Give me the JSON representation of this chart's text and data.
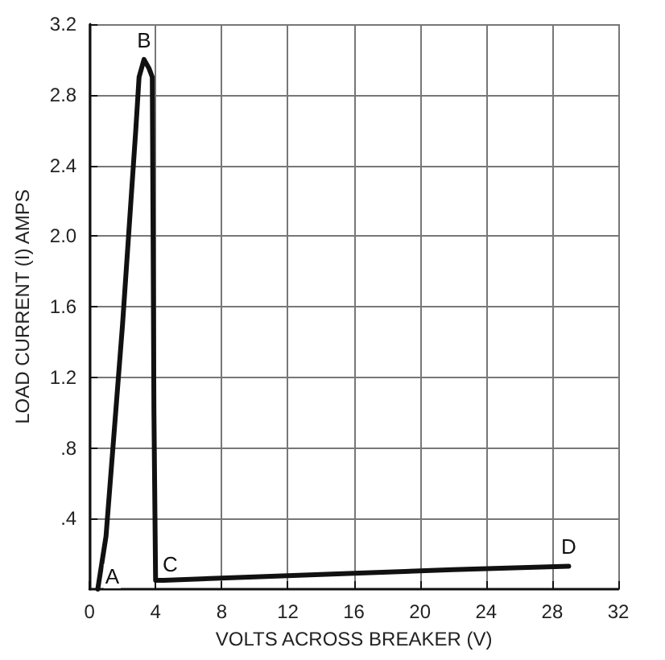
{
  "chart_data": {
    "type": "line",
    "xlabel": "VOLTS ACROSS BREAKER (V)",
    "ylabel": "LOAD CURRENT (I) AMPS",
    "x": [
      0.5,
      1.0,
      2.0,
      2.8,
      3.0,
      3.3,
      3.6,
      3.8,
      3.9,
      4.0,
      4.5,
      10,
      16,
      22,
      29
    ],
    "series": [
      {
        "color": "#111111",
        "values": [
          0,
          0.3,
          1.5,
          2.6,
          2.9,
          3.0,
          2.95,
          2.9,
          1.0,
          0.05,
          0.05,
          0.07,
          0.09,
          0.11,
          0.13
        ]
      }
    ],
    "xlim": [
      0,
      32
    ],
    "xticks": [
      0,
      4,
      8,
      12,
      16,
      20,
      24,
      28,
      32
    ],
    "ylim": [
      0,
      3.2
    ],
    "yticks": [
      {
        "value": 0.4,
        "label": ".4"
      },
      {
        "value": 0.8,
        "label": ".8"
      },
      1.2,
      1.6,
      {
        "value": 2,
        "label": "2.0"
      },
      2.4,
      2.8,
      3.2
    ],
    "grid": true,
    "marker": "none",
    "line_style": "solid",
    "annotations": [
      {
        "text": "A",
        "x": 0.5,
        "y": 0
      },
      {
        "text": "B",
        "x": 3.3,
        "y": 3.0
      },
      {
        "text": "C",
        "x": 4.0,
        "y": 0.05
      },
      {
        "text": "D",
        "x": 29,
        "y": 0.13
      }
    ]
  }
}
